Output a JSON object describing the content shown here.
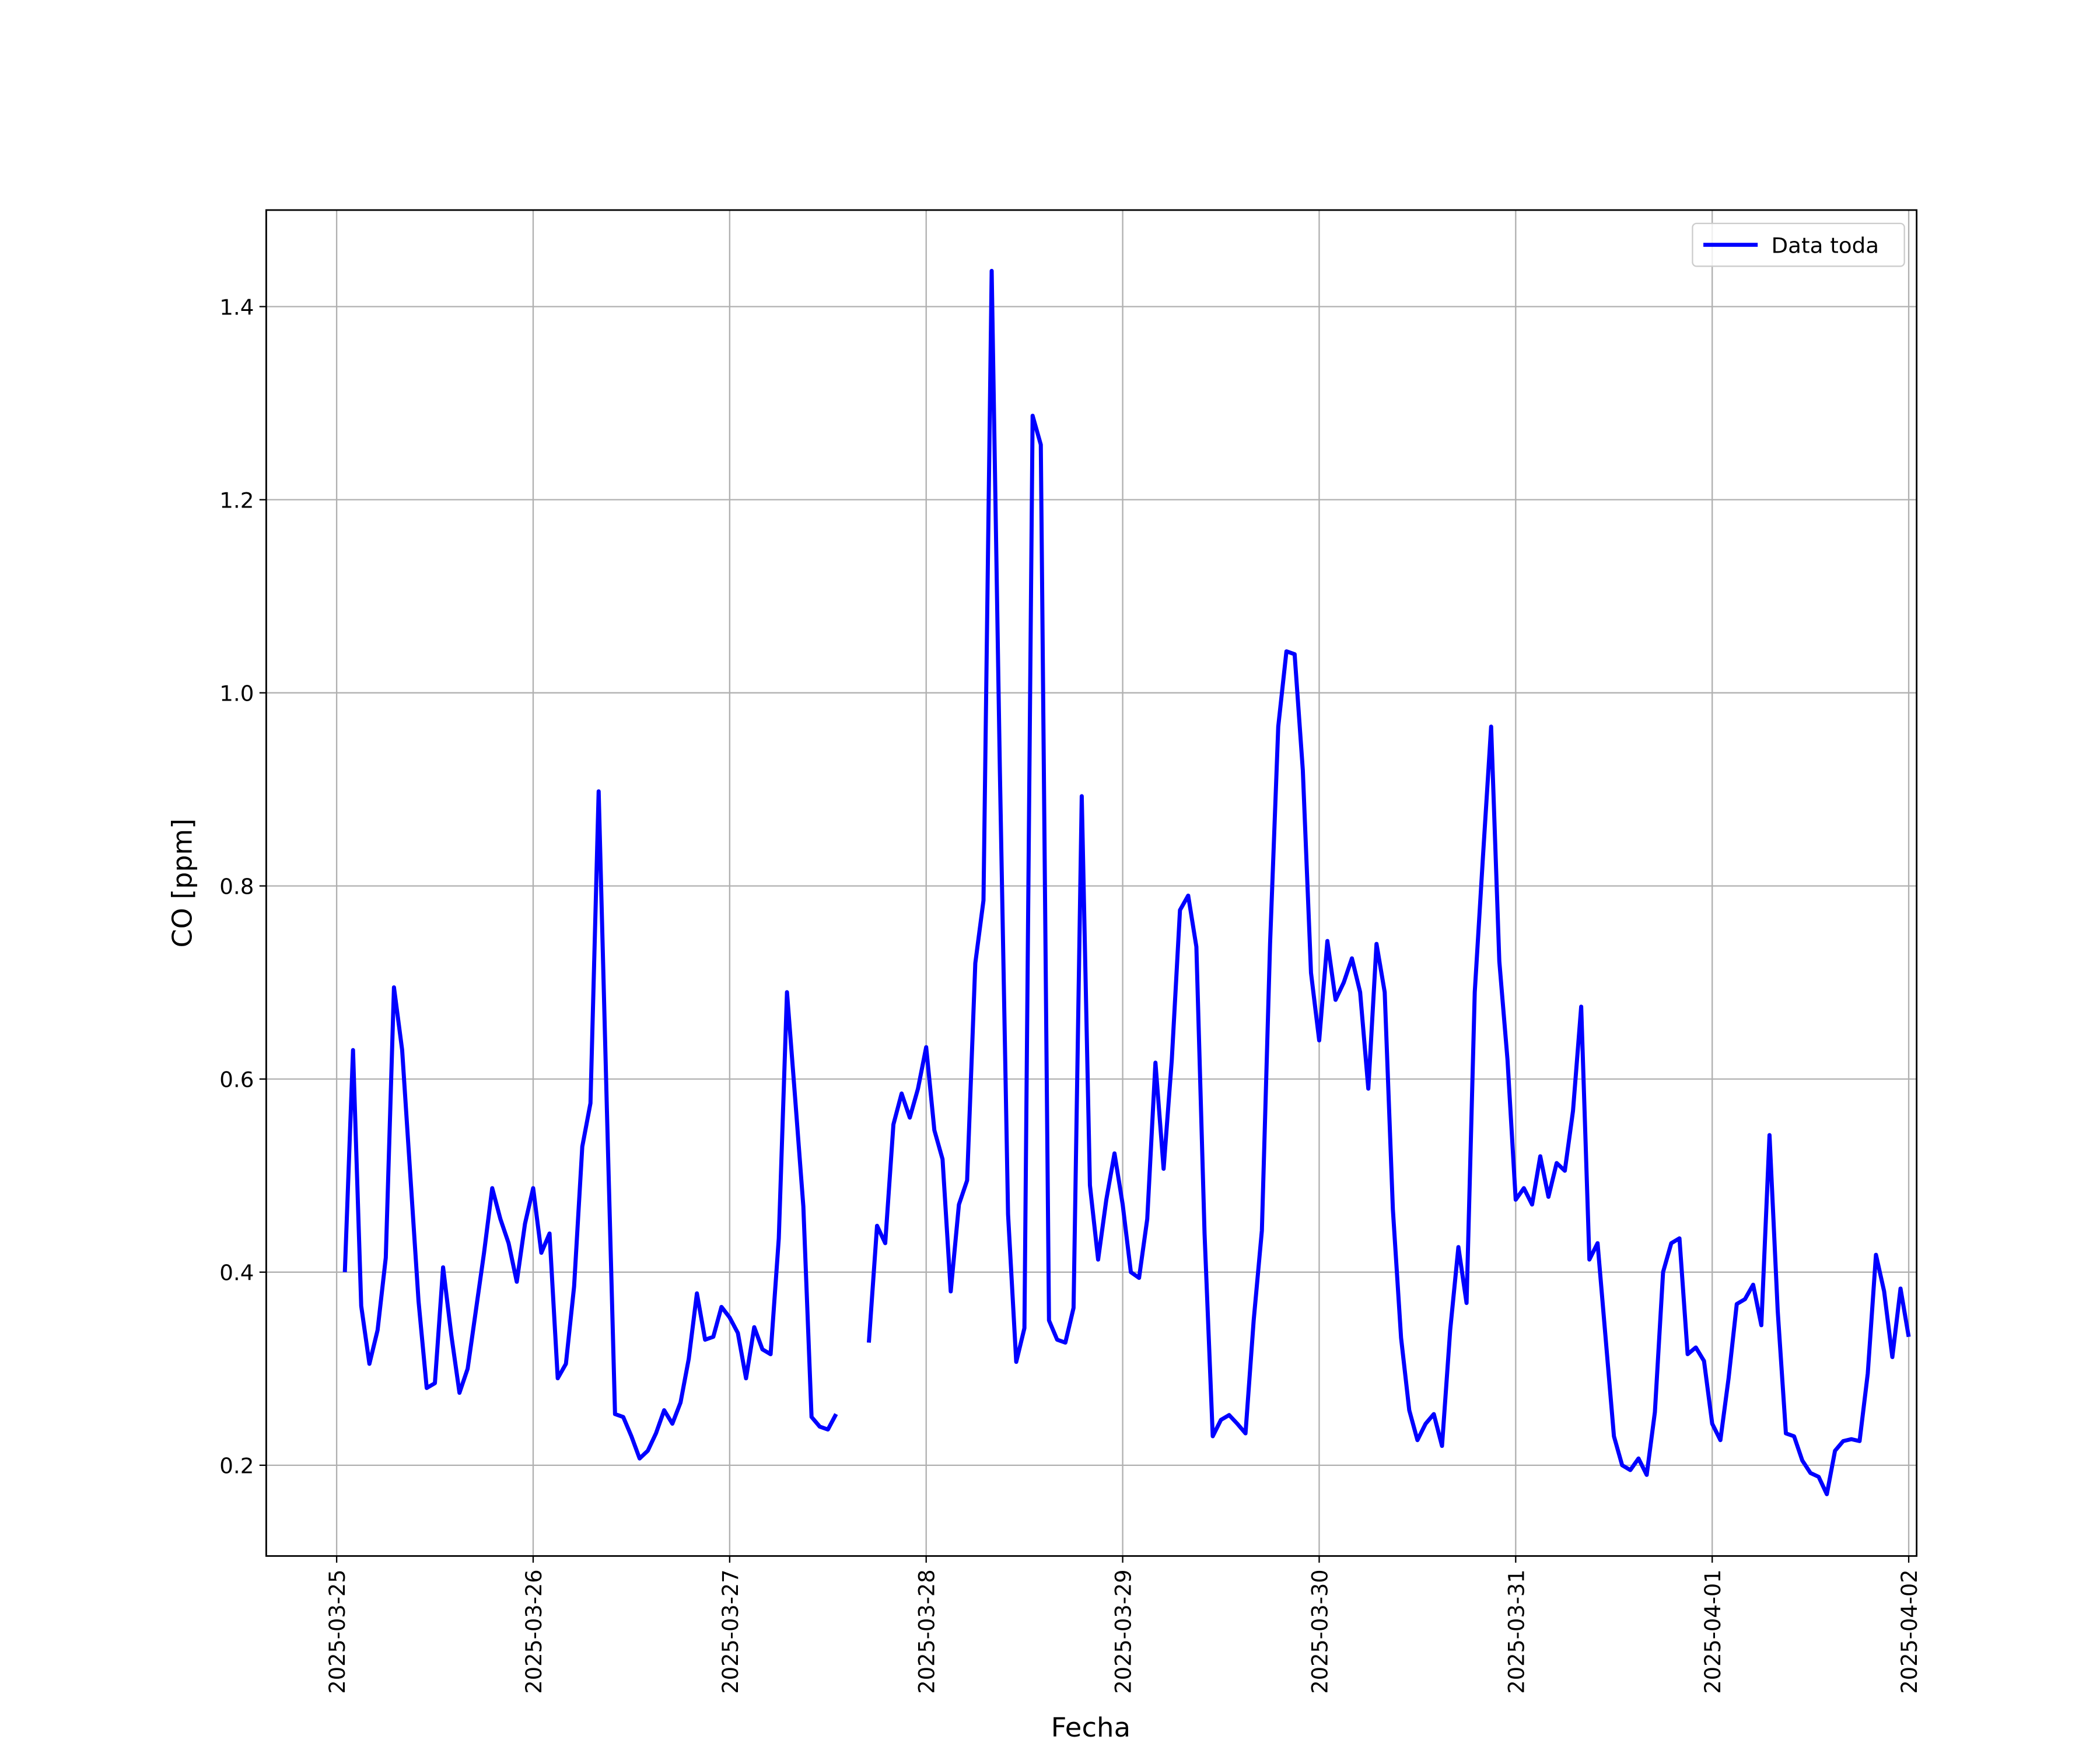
{
  "chart_data": {
    "type": "line",
    "xlabel": "Fecha",
    "ylabel": "CO [ppm]",
    "legend": "upper right",
    "grid": true,
    "xlim": [
      "2025-03-24 15:24",
      "2025-04-02 00:58"
    ],
    "xticks": [
      "2025-03-25",
      "2025-03-26",
      "2025-03-27",
      "2025-03-28",
      "2025-03-29",
      "2025-03-30",
      "2025-03-31",
      "2025-04-01",
      "2025-04-02"
    ],
    "ylim": [
      0.106,
      1.5
    ],
    "yticks": [
      0.2,
      0.4,
      0.6,
      0.8,
      {
        "value": 1,
        "label": "1.0"
      },
      1.2,
      1.4
    ],
    "x": [
      "2025-03-25 01:00",
      "2025-03-25 02:00",
      "2025-03-25 03:00",
      "2025-03-25 04:00",
      "2025-03-25 05:00",
      "2025-03-25 06:00",
      "2025-03-25 07:00",
      "2025-03-25 08:00",
      "2025-03-25 09:00",
      "2025-03-25 10:00",
      "2025-03-25 11:00",
      "2025-03-25 12:00",
      "2025-03-25 13:00",
      "2025-03-25 14:00",
      "2025-03-25 15:00",
      "2025-03-25 16:00",
      "2025-03-25 17:00",
      "2025-03-25 18:00",
      "2025-03-25 19:00",
      "2025-03-25 20:00",
      "2025-03-25 21:00",
      "2025-03-25 22:00",
      "2025-03-25 23:00",
      "2025-03-26 00:00",
      "2025-03-26 01:00",
      "2025-03-26 02:00",
      "2025-03-26 03:00",
      "2025-03-26 04:00",
      "2025-03-26 05:00",
      "2025-03-26 06:00",
      "2025-03-26 07:00",
      "2025-03-26 08:00",
      "2025-03-26 09:00",
      "2025-03-26 10:00",
      "2025-03-26 11:00",
      "2025-03-26 12:00",
      "2025-03-26 13:00",
      "2025-03-26 14:00",
      "2025-03-26 15:00",
      "2025-03-26 16:00",
      "2025-03-26 17:00",
      "2025-03-26 18:00",
      "2025-03-26 19:00",
      "2025-03-26 20:00",
      "2025-03-26 21:00",
      "2025-03-26 22:00",
      "2025-03-26 23:00",
      "2025-03-27 00:00",
      "2025-03-27 01:00",
      "2025-03-27 02:00",
      "2025-03-27 03:00",
      "2025-03-27 04:00",
      "2025-03-27 05:00",
      "2025-03-27 06:00",
      "2025-03-27 07:00",
      "2025-03-27 08:00",
      "2025-03-27 09:00",
      "2025-03-27 10:00",
      "2025-03-27 11:00",
      "2025-03-27 12:00",
      "2025-03-27 13:00",
      "2025-03-27 14:00",
      "2025-03-27 15:00",
      "2025-03-27 16:00",
      "2025-03-27 17:00",
      "2025-03-27 18:00",
      "2025-03-27 19:00",
      "2025-03-27 20:00",
      "2025-03-27 21:00",
      "2025-03-27 22:00",
      "2025-03-27 23:00",
      "2025-03-28 00:00",
      "2025-03-28 01:00",
      "2025-03-28 02:00",
      "2025-03-28 03:00",
      "2025-03-28 04:00",
      "2025-03-28 05:00",
      "2025-03-28 06:00",
      "2025-03-28 07:00",
      "2025-03-28 08:00",
      "2025-03-28 09:00",
      "2025-03-28 10:00",
      "2025-03-28 11:00",
      "2025-03-28 12:00",
      "2025-03-28 13:00",
      "2025-03-28 14:00",
      "2025-03-28 15:00",
      "2025-03-28 16:00",
      "2025-03-28 17:00",
      "2025-03-28 18:00",
      "2025-03-28 19:00",
      "2025-03-28 20:00",
      "2025-03-28 21:00",
      "2025-03-28 22:00",
      "2025-03-28 23:00",
      "2025-03-29 00:00",
      "2025-03-29 01:00",
      "2025-03-29 02:00",
      "2025-03-29 03:00",
      "2025-03-29 04:00",
      "2025-03-29 05:00",
      "2025-03-29 06:00",
      "2025-03-29 07:00",
      "2025-03-29 08:00",
      "2025-03-29 09:00",
      "2025-03-29 10:00",
      "2025-03-29 11:00",
      "2025-03-29 12:00",
      "2025-03-29 13:00",
      "2025-03-29 14:00",
      "2025-03-29 15:00",
      "2025-03-29 16:00",
      "2025-03-29 17:00",
      "2025-03-29 18:00",
      "2025-03-29 19:00",
      "2025-03-29 20:00",
      "2025-03-29 21:00",
      "2025-03-29 22:00",
      "2025-03-29 23:00",
      "2025-03-30 00:00",
      "2025-03-30 01:00",
      "2025-03-30 02:00",
      "2025-03-30 03:00",
      "2025-03-30 04:00",
      "2025-03-30 05:00",
      "2025-03-30 06:00",
      "2025-03-30 07:00",
      "2025-03-30 08:00",
      "2025-03-30 09:00",
      "2025-03-30 10:00",
      "2025-03-30 11:00",
      "2025-03-30 12:00",
      "2025-03-30 13:00",
      "2025-03-30 14:00",
      "2025-03-30 15:00",
      "2025-03-30 16:00",
      "2025-03-30 17:00",
      "2025-03-30 18:00",
      "2025-03-30 19:00",
      "2025-03-30 20:00",
      "2025-03-30 21:00",
      "2025-03-30 22:00",
      "2025-03-30 23:00",
      "2025-03-31 00:00",
      "2025-03-31 01:00",
      "2025-03-31 02:00",
      "2025-03-31 03:00",
      "2025-03-31 04:00",
      "2025-03-31 05:00",
      "2025-03-31 06:00",
      "2025-03-31 07:00",
      "2025-03-31 08:00",
      "2025-03-31 09:00",
      "2025-03-31 10:00",
      "2025-03-31 11:00",
      "2025-03-31 12:00",
      "2025-03-31 13:00",
      "2025-03-31 14:00",
      "2025-03-31 15:00",
      "2025-03-31 16:00",
      "2025-03-31 17:00",
      "2025-03-31 18:00",
      "2025-03-31 19:00",
      "2025-03-31 20:00",
      "2025-03-31 21:00",
      "2025-03-31 22:00",
      "2025-03-31 23:00",
      "2025-04-01 00:00",
      "2025-04-01 01:00",
      "2025-04-01 02:00",
      "2025-04-01 03:00",
      "2025-04-01 04:00",
      "2025-04-01 05:00",
      "2025-04-01 06:00",
      "2025-04-01 07:00",
      "2025-04-01 08:00",
      "2025-04-01 09:00",
      "2025-04-01 10:00",
      "2025-04-01 11:00",
      "2025-04-01 12:00",
      "2025-04-01 13:00",
      "2025-04-01 14:00",
      "2025-04-01 15:00",
      "2025-04-01 16:00",
      "2025-04-01 17:00",
      "2025-04-01 18:00",
      "2025-04-01 19:00",
      "2025-04-01 20:00",
      "2025-04-01 21:00",
      "2025-04-01 22:00",
      "2025-04-01 23:00",
      "2025-04-02 00:00"
    ],
    "series": [
      {
        "name": "Data toda",
        "color": "#0000ff",
        "values": [
          0.4,
          0.63,
          0.365,
          0.305,
          0.34,
          0.415,
          0.695,
          0.63,
          0.5,
          0.37,
          0.28,
          0.285,
          0.405,
          0.335,
          0.275,
          0.3,
          0.36,
          0.42,
          0.487,
          0.455,
          0.43,
          0.39,
          0.45,
          0.487,
          0.42,
          0.44,
          0.29,
          0.305,
          0.385,
          0.53,
          0.575,
          0.898,
          0.57,
          0.253,
          0.25,
          0.23,
          0.207,
          0.215,
          0.233,
          0.257,
          0.243,
          0.265,
          0.31,
          0.378,
          0.33,
          0.333,
          0.364,
          0.353,
          0.337,
          0.29,
          0.343,
          0.32,
          0.315,
          0.435,
          0.69,
          0.58,
          0.468,
          0.25,
          0.24,
          0.237,
          0.253,
          null,
          null,
          null,
          0.327,
          0.448,
          0.43,
          0.553,
          0.585,
          0.56,
          0.59,
          0.633,
          0.547,
          0.517,
          0.38,
          0.47,
          0.495,
          0.72,
          0.785,
          1.437,
          0.92,
          0.46,
          0.307,
          0.342,
          1.287,
          1.257,
          0.35,
          0.33,
          0.327,
          0.363,
          0.893,
          0.49,
          0.413,
          0.475,
          0.523,
          0.47,
          0.4,
          0.394,
          0.455,
          0.617,
          0.507,
          0.62,
          0.775,
          0.79,
          0.737,
          0.44,
          0.23,
          0.247,
          0.252,
          0.243,
          0.233,
          0.35,
          0.443,
          0.74,
          0.965,
          1.043,
          1.04,
          0.92,
          0.71,
          0.64,
          0.743,
          0.682,
          0.7,
          0.725,
          0.69,
          0.59,
          0.74,
          0.69,
          0.465,
          0.332,
          0.257,
          0.226,
          0.243,
          0.253,
          0.22,
          0.34,
          0.426,
          0.368,
          0.69,
          0.83,
          0.965,
          0.722,
          0.62,
          0.475,
          0.487,
          0.47,
          0.52,
          0.478,
          0.513,
          0.505,
          0.567,
          0.675,
          0.413,
          0.43,
          0.33,
          0.23,
          0.2,
          0.195,
          0.207,
          0.19,
          0.255,
          0.4,
          0.43,
          0.435,
          0.315,
          0.322,
          0.308,
          0.243,
          0.226,
          0.29,
          0.367,
          0.372,
          0.387,
          0.345,
          0.542,
          0.36,
          0.233,
          0.23,
          0.205,
          0.192,
          0.188,
          0.17,
          0.215,
          0.225,
          0.227,
          0.225,
          0.295,
          0.418,
          0.38,
          0.312,
          0.383,
          0.333
        ]
      }
    ]
  }
}
